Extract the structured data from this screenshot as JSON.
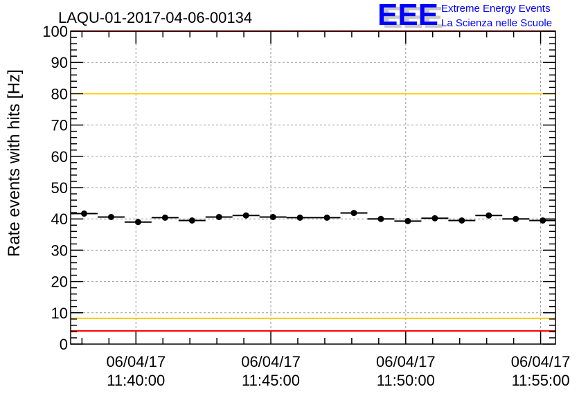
{
  "logo": {
    "text": "EEE",
    "line1": "Extreme Energy Events",
    "line2": "La Scienza nelle Scuole",
    "color": "#0000ff"
  },
  "chart_data": {
    "type": "scatter",
    "title": "LAQU-01-2017-04-06-00134",
    "xlabel": "",
    "ylabel": "Rate events with hits [Hz]",
    "ylim": [
      0,
      100
    ],
    "yticks": [
      0,
      10,
      20,
      30,
      40,
      50,
      60,
      70,
      80,
      90,
      100
    ],
    "xlim_minutes": [
      -2.42,
      15.55
    ],
    "x_unit": "minutes relative to 11:40:00",
    "xticks": [
      {
        "minute": 0,
        "date": "06/04/17",
        "time": "11:40:00"
      },
      {
        "minute": 5,
        "date": "06/04/17",
        "time": "11:45:00"
      },
      {
        "minute": 10,
        "date": "06/04/17",
        "time": "11:50:00"
      },
      {
        "minute": 15,
        "date": "06/04/17",
        "time": "11:55:00"
      }
    ],
    "bin_width_minutes": 1,
    "series": [
      {
        "name": "rate",
        "x_bin_start": [
          -2.42,
          -1.42,
          -0.42,
          0.58,
          1.58,
          2.58,
          3.58,
          4.58,
          5.58,
          6.58,
          7.58,
          8.58,
          9.58,
          10.58,
          11.58,
          12.58,
          13.58,
          14.58
        ],
        "values": [
          41.7,
          40.6,
          39.0,
          40.4,
          39.5,
          40.6,
          41.1,
          40.6,
          40.4,
          40.4,
          41.9,
          40.0,
          39.3,
          40.2,
          39.5,
          41.1,
          40.0,
          39.5
        ]
      }
    ],
    "reference_lines": [
      {
        "y": 100,
        "color": "#ff0000"
      },
      {
        "y": 80,
        "color": "#ffcc00"
      },
      {
        "y": 8.2,
        "color": "#ffcc00"
      },
      {
        "y": 4.2,
        "color": "#ff0000"
      }
    ],
    "grid": true
  }
}
